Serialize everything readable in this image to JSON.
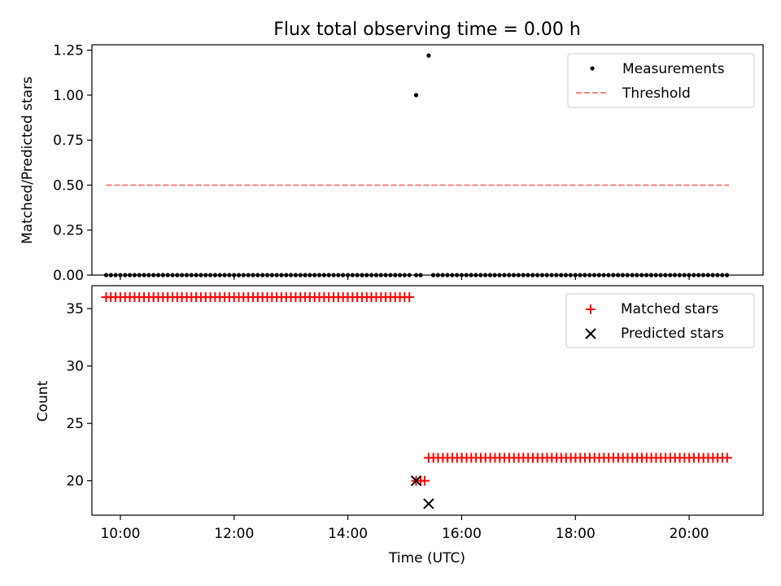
{
  "chart_data": [
    {
      "type": "scatter",
      "title": "Flux total observing time = 0.00 h",
      "xlabel": "",
      "ylabel": "Matched/Predicted stars",
      "xlim": [
        9.5,
        21.3
      ],
      "ylim": [
        0.0,
        1.28
      ],
      "yticks": [
        0.0,
        0.25,
        0.5,
        0.75,
        1.0,
        1.25
      ],
      "ytick_labels": [
        "0.00",
        "0.25",
        "0.50",
        "0.75",
        "1.00",
        "1.25"
      ],
      "series": [
        {
          "name": "Measurements",
          "kind": "dots",
          "color": "#000000",
          "points": [
            {
              "x_start": 9.75,
              "x_end": 15.12,
              "step": 0.0833,
              "y": 0.0
            },
            {
              "x": 15.2,
              "y": 0.0
            },
            {
              "x": 15.28,
              "y": 0.0
            },
            {
              "x_start": 15.5,
              "x_end": 20.7,
              "step": 0.0833,
              "y": 0.0
            },
            {
              "x": 15.2,
              "y": 1.0
            },
            {
              "x": 15.42,
              "y": 1.22
            }
          ]
        },
        {
          "name": "Threshold",
          "kind": "dashed-line",
          "color": "#ff7f7f",
          "x": [
            9.75,
            20.7
          ],
          "y": [
            0.5,
            0.5
          ]
        }
      ],
      "legend_location": "top-right"
    },
    {
      "type": "scatter",
      "title": "",
      "xlabel": "Time (UTC)",
      "ylabel": "Count",
      "xlim": [
        9.5,
        21.3
      ],
      "ylim": [
        17.0,
        37.0
      ],
      "yticks": [
        20,
        25,
        30,
        35
      ],
      "ytick_labels": [
        "20",
        "25",
        "30",
        "35"
      ],
      "xticks": [
        10,
        12,
        14,
        16,
        18,
        20
      ],
      "xtick_labels": [
        "10:00",
        "12:00",
        "14:00",
        "16:00",
        "18:00",
        "20:00"
      ],
      "series": [
        {
          "name": "Matched stars",
          "kind": "plus",
          "color": "#ff0000",
          "points": [
            {
              "x_start": 9.75,
              "x_end": 15.12,
              "step": 0.0833,
              "y": 36
            },
            {
              "x": 15.2,
              "y": 20
            },
            {
              "x": 15.28,
              "y": 20
            },
            {
              "x": 15.35,
              "y": 20
            },
            {
              "x_start": 15.42,
              "x_end": 20.7,
              "step": 0.0833,
              "y": 22
            }
          ]
        },
        {
          "name": "Predicted stars",
          "kind": "x",
          "color": "#000000",
          "points": [
            {
              "x": 15.2,
              "y": 20
            },
            {
              "x": 15.42,
              "y": 18
            }
          ]
        }
      ],
      "legend_location": "top-right"
    }
  ]
}
